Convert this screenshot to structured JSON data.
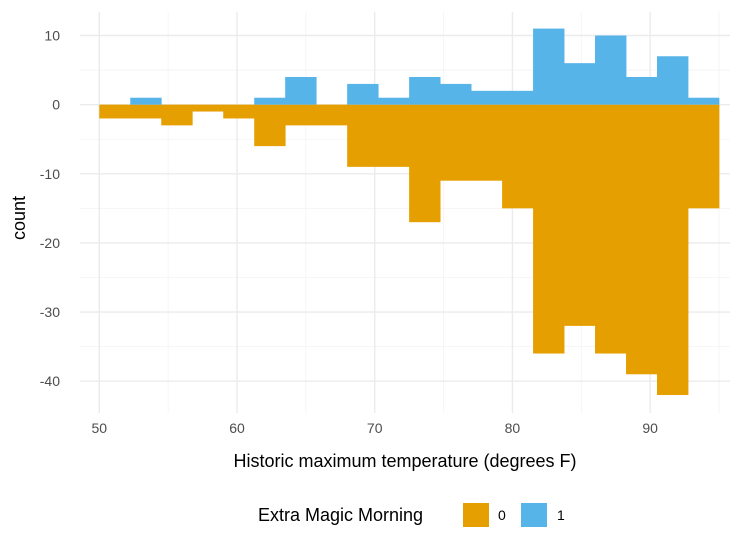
{
  "chart_data": {
    "type": "bar",
    "title": "",
    "xlabel": "Historic maximum temperature (degrees F)",
    "ylabel": "count",
    "xlim": [
      48.6,
      95.8
    ],
    "ylim": [
      -44.6,
      13.4
    ],
    "xticks": [
      50,
      60,
      70,
      80,
      90
    ],
    "yticks": [
      10,
      0,
      -10,
      -20,
      -30,
      -40
    ],
    "bin_edges": [
      50.0,
      52.25,
      54.5,
      56.75,
      59.0,
      61.25,
      63.5,
      65.75,
      68.0,
      70.25,
      72.5,
      74.75,
      77.0,
      79.25,
      81.5,
      83.75,
      86.0,
      88.25,
      90.5,
      92.75,
      95.0
    ],
    "legend": {
      "title": "Extra Magic Morning",
      "position": "bottom",
      "entries": [
        {
          "label": "0",
          "color": "#E69F00"
        },
        {
          "label": "1",
          "color": "#56B4E9"
        }
      ]
    },
    "series": [
      {
        "name": "0",
        "color": "#E69F00",
        "values": [
          -2,
          -2,
          -3,
          -1,
          -2,
          -6,
          -3,
          -3,
          -9,
          -9,
          -17,
          -11,
          -11,
          -15,
          -36,
          -32,
          -36,
          -39,
          -42,
          -15
        ]
      },
      {
        "name": "1",
        "color": "#56B4E9",
        "values": [
          0,
          1,
          0,
          0,
          0,
          1,
          4,
          0,
          3,
          1,
          4,
          3,
          2,
          2,
          11,
          6,
          10,
          4,
          7,
          1
        ]
      }
    ]
  }
}
